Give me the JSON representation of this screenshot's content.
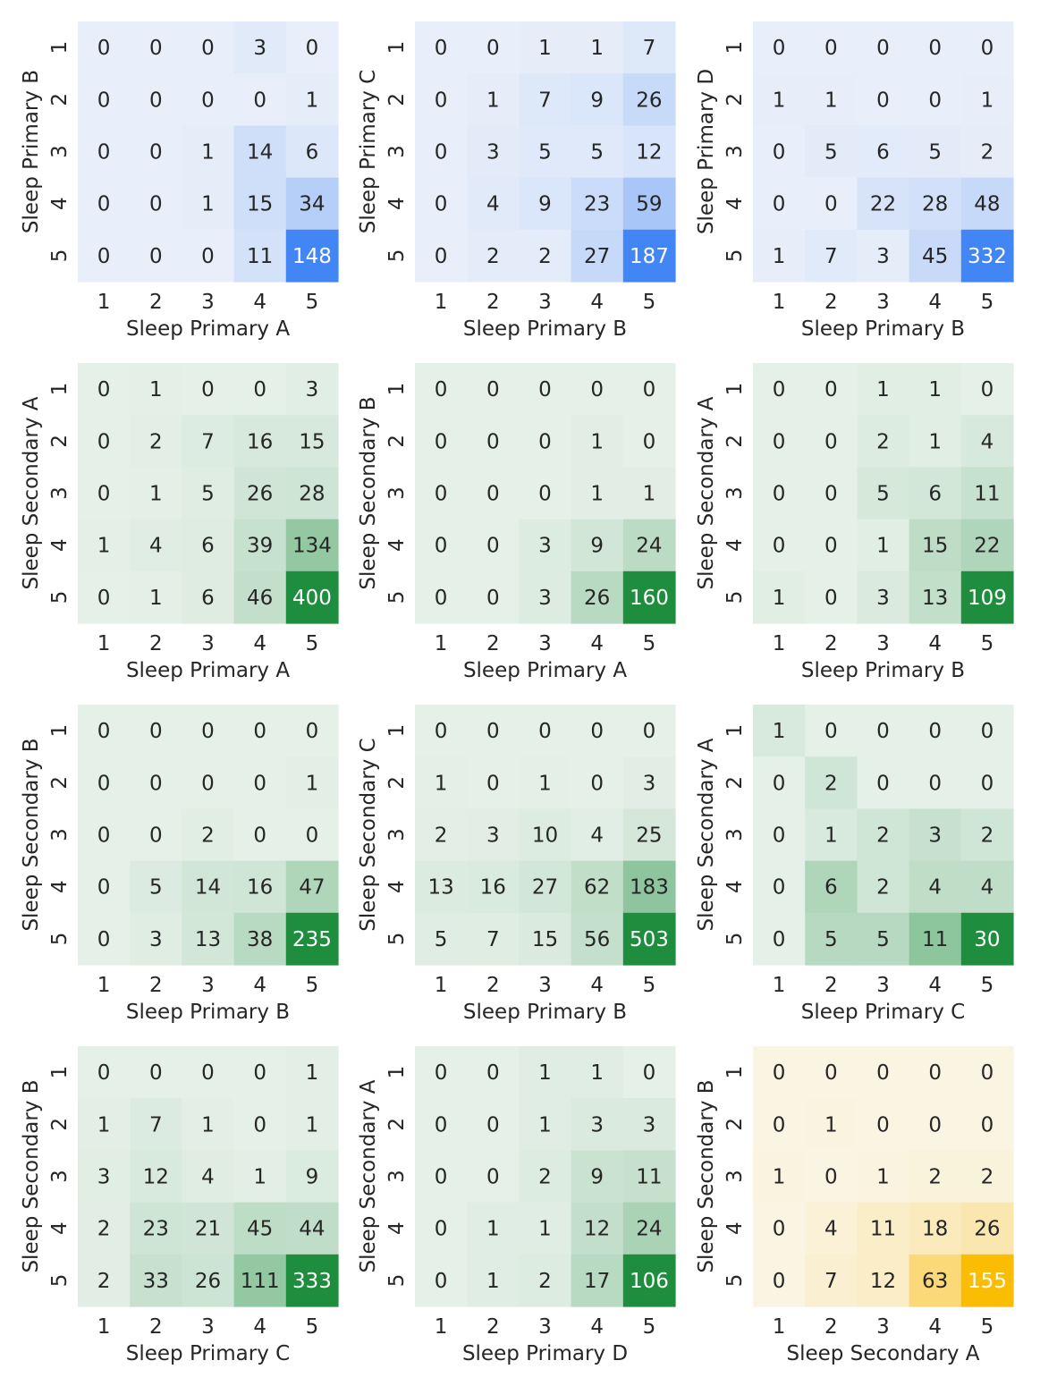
{
  "chart_data": [
    {
      "type": "heatmap",
      "xlabel": "Sleep Primary A",
      "ylabel": "Sleep Primary B",
      "x_ticks": [
        "1",
        "2",
        "3",
        "4",
        "5"
      ],
      "y_ticks": [
        "1",
        "2",
        "3",
        "4",
        "5"
      ],
      "color": "#4285f4",
      "values": [
        [
          0,
          0,
          0,
          3,
          0
        ],
        [
          0,
          0,
          0,
          0,
          1
        ],
        [
          0,
          0,
          1,
          14,
          6
        ],
        [
          0,
          0,
          1,
          15,
          34
        ],
        [
          0,
          0,
          0,
          11,
          148
        ]
      ]
    },
    {
      "type": "heatmap",
      "xlabel": "Sleep Primary B",
      "ylabel": "Sleep Primary C",
      "x_ticks": [
        "1",
        "2",
        "3",
        "4",
        "5"
      ],
      "y_ticks": [
        "1",
        "2",
        "3",
        "4",
        "5"
      ],
      "color": "#4285f4",
      "values": [
        [
          0,
          0,
          1,
          1,
          7
        ],
        [
          0,
          1,
          7,
          9,
          26
        ],
        [
          0,
          3,
          5,
          5,
          12
        ],
        [
          0,
          4,
          9,
          23,
          59
        ],
        [
          0,
          2,
          2,
          27,
          187
        ]
      ]
    },
    {
      "type": "heatmap",
      "xlabel": "Sleep Primary B",
      "ylabel": "Sleep Primary D",
      "x_ticks": [
        "1",
        "2",
        "3",
        "4",
        "5"
      ],
      "y_ticks": [
        "1",
        "2",
        "3",
        "4",
        "5"
      ],
      "color": "#4285f4",
      "values": [
        [
          0,
          0,
          0,
          0,
          0
        ],
        [
          1,
          1,
          0,
          0,
          1
        ],
        [
          0,
          5,
          6,
          5,
          2
        ],
        [
          0,
          0,
          22,
          28,
          48
        ],
        [
          1,
          7,
          3,
          45,
          332
        ]
      ]
    },
    {
      "type": "heatmap",
      "xlabel": "Sleep Primary A",
      "ylabel": "Sleep Secondary A",
      "x_ticks": [
        "1",
        "2",
        "3",
        "4",
        "5"
      ],
      "y_ticks": [
        "1",
        "2",
        "3",
        "4",
        "5"
      ],
      "color": "#1e8e3e",
      "values": [
        [
          0,
          1,
          0,
          0,
          3
        ],
        [
          0,
          2,
          7,
          16,
          15
        ],
        [
          0,
          1,
          5,
          26,
          28
        ],
        [
          1,
          4,
          6,
          39,
          134
        ],
        [
          0,
          1,
          6,
          46,
          400
        ]
      ]
    },
    {
      "type": "heatmap",
      "xlabel": "Sleep Primary A",
      "ylabel": "Sleep Secondary B",
      "x_ticks": [
        "1",
        "2",
        "3",
        "4",
        "5"
      ],
      "y_ticks": [
        "1",
        "2",
        "3",
        "4",
        "5"
      ],
      "color": "#1e8e3e",
      "values": [
        [
          0,
          0,
          0,
          0,
          0
        ],
        [
          0,
          0,
          0,
          1,
          0
        ],
        [
          0,
          0,
          0,
          1,
          1
        ],
        [
          0,
          0,
          3,
          9,
          24
        ],
        [
          0,
          0,
          3,
          26,
          160
        ]
      ]
    },
    {
      "type": "heatmap",
      "xlabel": "Sleep Primary B",
      "ylabel": "Sleep Secondary A",
      "x_ticks": [
        "1",
        "2",
        "3",
        "4",
        "5"
      ],
      "y_ticks": [
        "1",
        "2",
        "3",
        "4",
        "5"
      ],
      "color": "#1e8e3e",
      "values": [
        [
          0,
          0,
          1,
          1,
          0
        ],
        [
          0,
          0,
          2,
          1,
          4
        ],
        [
          0,
          0,
          5,
          6,
          11
        ],
        [
          0,
          0,
          1,
          15,
          22
        ],
        [
          1,
          0,
          3,
          13,
          109
        ]
      ]
    },
    {
      "type": "heatmap",
      "xlabel": "Sleep Primary B",
      "ylabel": "Sleep Secondary B",
      "x_ticks": [
        "1",
        "2",
        "3",
        "4",
        "5"
      ],
      "y_ticks": [
        "1",
        "2",
        "3",
        "4",
        "5"
      ],
      "color": "#1e8e3e",
      "values": [
        [
          0,
          0,
          0,
          0,
          0
        ],
        [
          0,
          0,
          0,
          0,
          1
        ],
        [
          0,
          0,
          2,
          0,
          0
        ],
        [
          0,
          5,
          14,
          16,
          47
        ],
        [
          0,
          3,
          13,
          38,
          235
        ]
      ]
    },
    {
      "type": "heatmap",
      "xlabel": "Sleep Primary B",
      "ylabel": "Sleep Secondary C",
      "x_ticks": [
        "1",
        "2",
        "3",
        "4",
        "5"
      ],
      "y_ticks": [
        "1",
        "2",
        "3",
        "4",
        "5"
      ],
      "color": "#1e8e3e",
      "values": [
        [
          0,
          0,
          0,
          0,
          0
        ],
        [
          1,
          0,
          1,
          0,
          3
        ],
        [
          2,
          3,
          10,
          4,
          25
        ],
        [
          13,
          16,
          27,
          62,
          183
        ],
        [
          5,
          7,
          15,
          56,
          503
        ]
      ]
    },
    {
      "type": "heatmap",
      "xlabel": "Sleep Primary C",
      "ylabel": "Sleep Secondary A",
      "x_ticks": [
        "1",
        "2",
        "3",
        "4",
        "5"
      ],
      "y_ticks": [
        "1",
        "2",
        "3",
        "4",
        "5"
      ],
      "color": "#1e8e3e",
      "values": [
        [
          1,
          0,
          0,
          0,
          0
        ],
        [
          0,
          2,
          0,
          0,
          0
        ],
        [
          0,
          1,
          2,
          3,
          2
        ],
        [
          0,
          6,
          2,
          4,
          4
        ],
        [
          0,
          5,
          5,
          11,
          30
        ]
      ]
    },
    {
      "type": "heatmap",
      "xlabel": "Sleep Primary C",
      "ylabel": "Sleep Secondary B",
      "x_ticks": [
        "1",
        "2",
        "3",
        "4",
        "5"
      ],
      "y_ticks": [
        "1",
        "2",
        "3",
        "4",
        "5"
      ],
      "color": "#1e8e3e",
      "values": [
        [
          0,
          0,
          0,
          0,
          1
        ],
        [
          1,
          7,
          1,
          0,
          1
        ],
        [
          3,
          12,
          4,
          1,
          9
        ],
        [
          2,
          23,
          21,
          45,
          44
        ],
        [
          2,
          33,
          26,
          111,
          333
        ]
      ]
    },
    {
      "type": "heatmap",
      "xlabel": "Sleep Primary D",
      "ylabel": "Sleep Secondary A",
      "x_ticks": [
        "1",
        "2",
        "3",
        "4",
        "5"
      ],
      "y_ticks": [
        "1",
        "2",
        "3",
        "4",
        "5"
      ],
      "color": "#1e8e3e",
      "values": [
        [
          0,
          0,
          1,
          1,
          0
        ],
        [
          0,
          0,
          1,
          3,
          3
        ],
        [
          0,
          0,
          2,
          9,
          11
        ],
        [
          0,
          1,
          1,
          12,
          24
        ],
        [
          0,
          1,
          2,
          17,
          106
        ]
      ]
    },
    {
      "type": "heatmap",
      "xlabel": "Sleep Secondary A",
      "ylabel": "Sleep Secondary B",
      "x_ticks": [
        "1",
        "2",
        "3",
        "4",
        "5"
      ],
      "y_ticks": [
        "1",
        "2",
        "3",
        "4",
        "5"
      ],
      "color": "#fbbc04",
      "values": [
        [
          0,
          0,
          0,
          0,
          0
        ],
        [
          0,
          1,
          0,
          0,
          0
        ],
        [
          1,
          0,
          1,
          2,
          2
        ],
        [
          0,
          4,
          11,
          18,
          26
        ],
        [
          0,
          7,
          12,
          63,
          155
        ]
      ]
    }
  ]
}
